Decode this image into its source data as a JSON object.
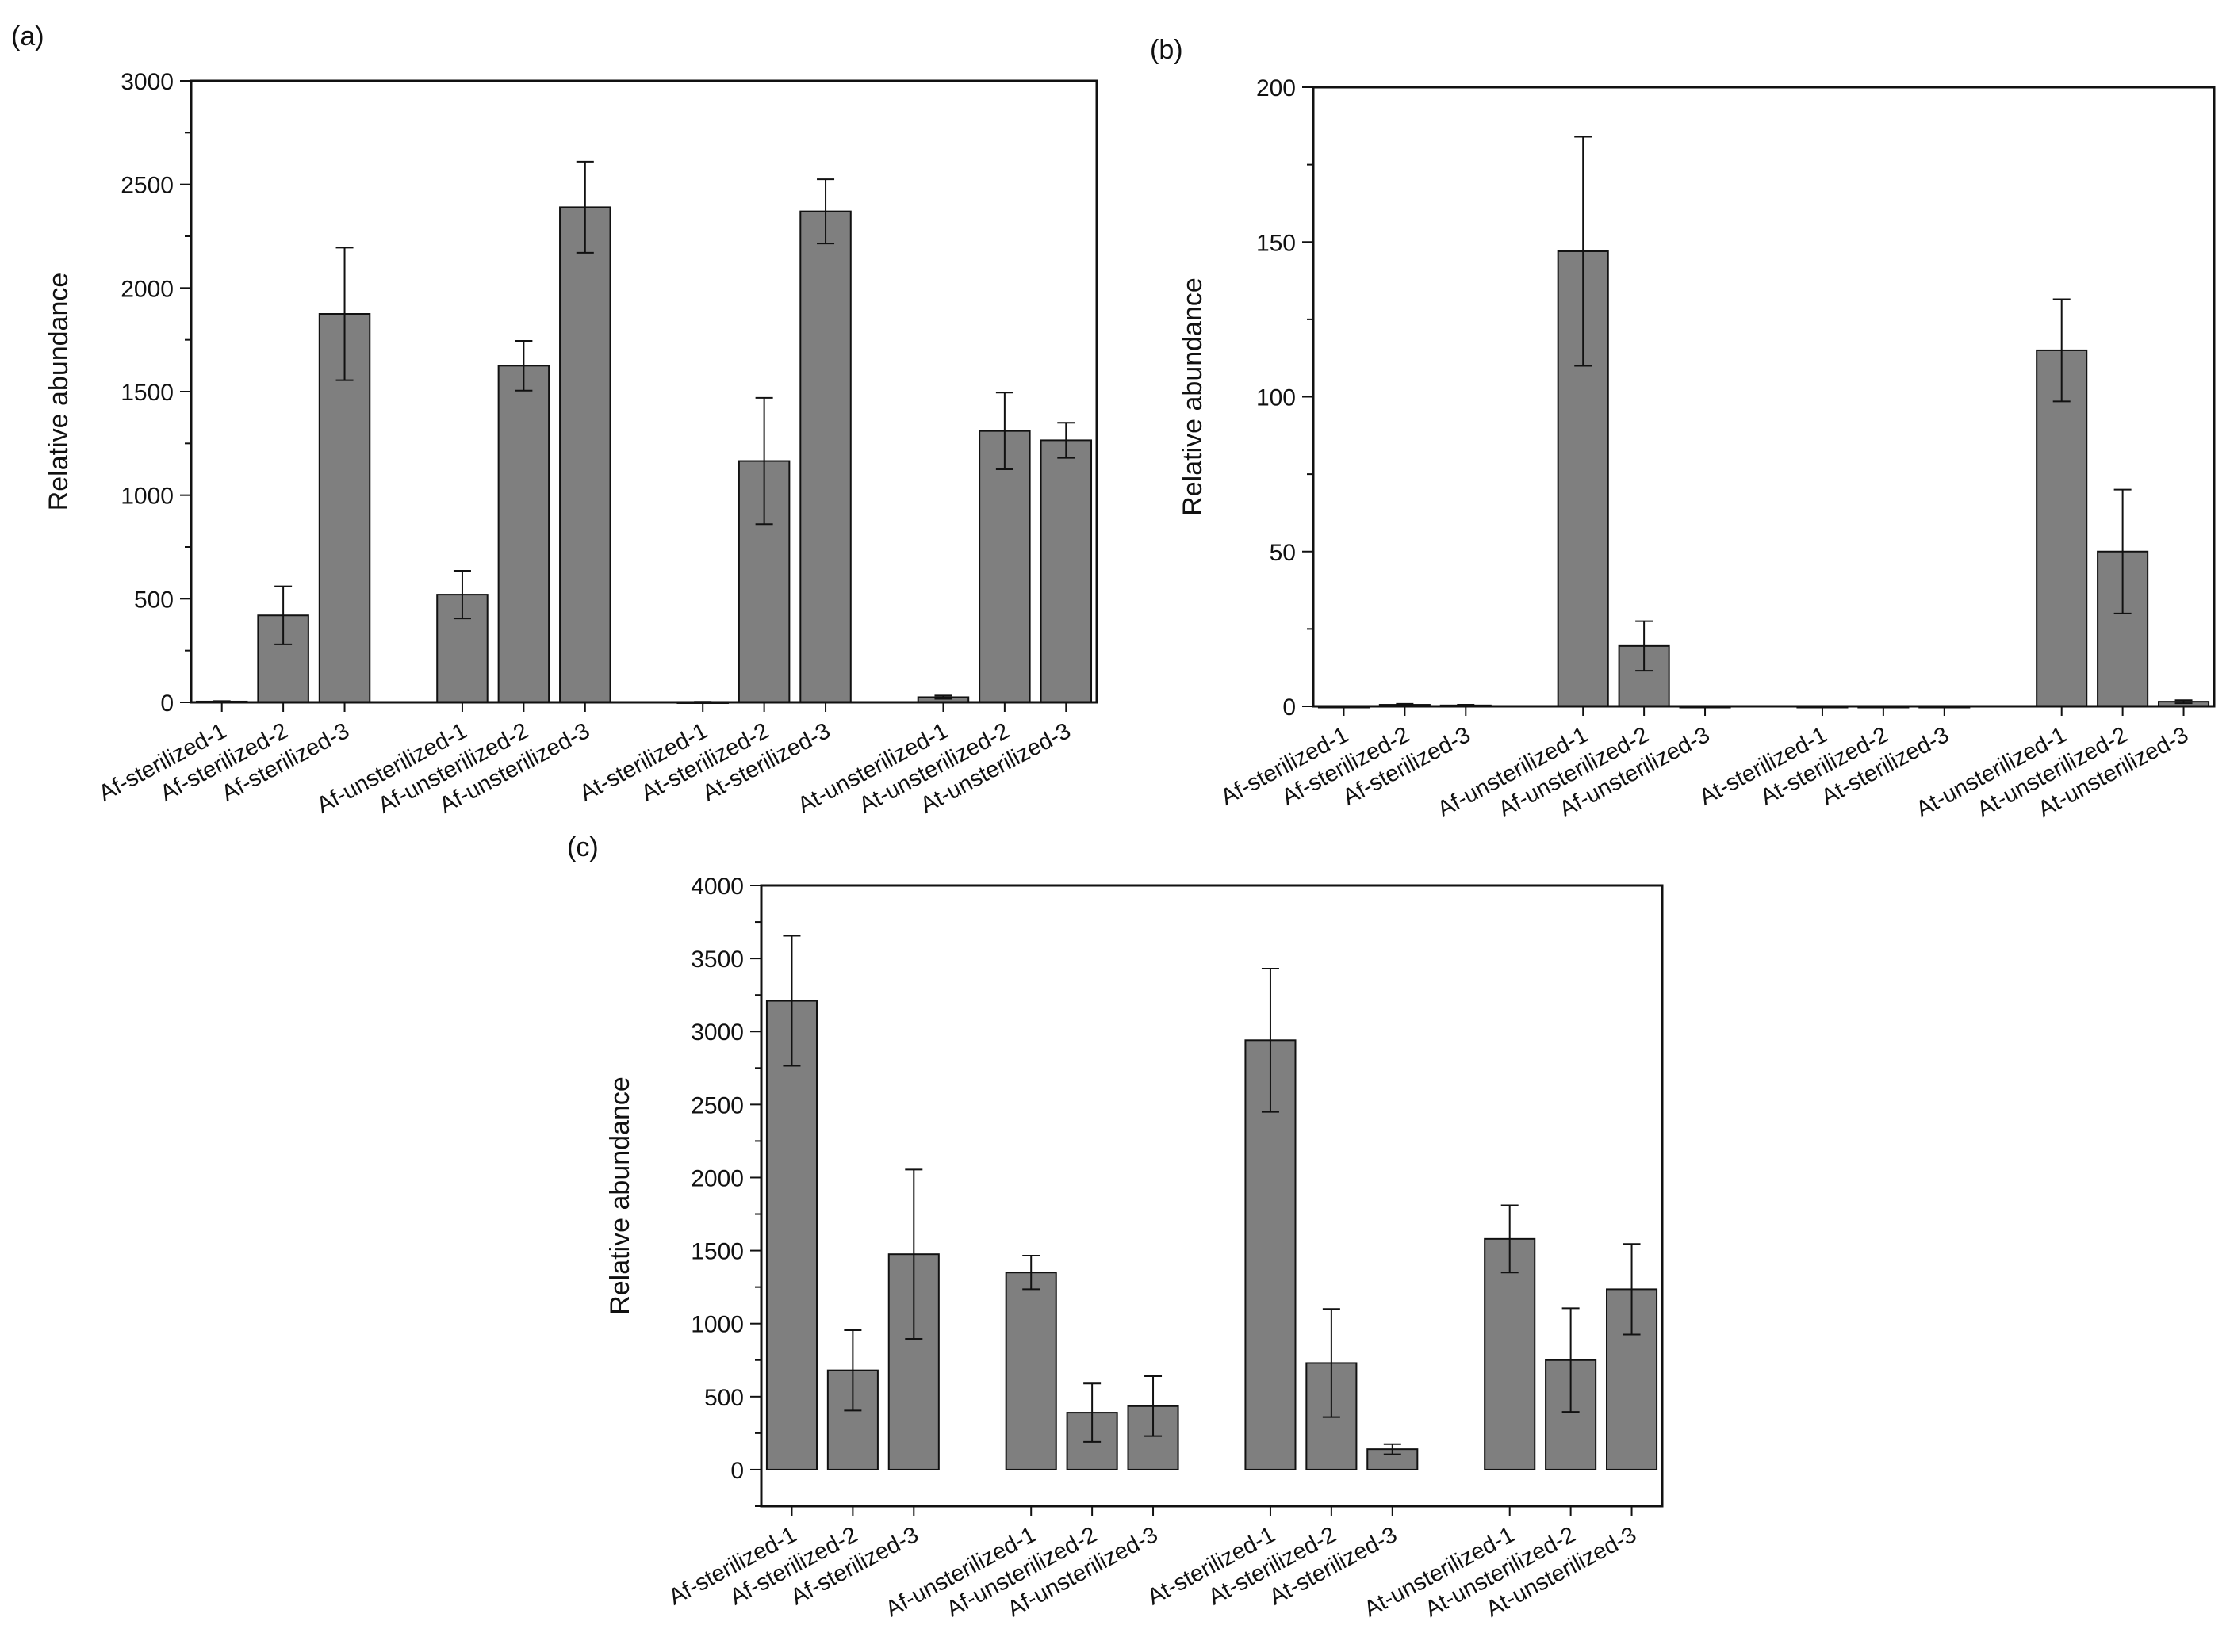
{
  "colors": {
    "bar": "#7f7f7f",
    "stroke": "#111111",
    "background": "#ffffff"
  },
  "chart_data": [
    {
      "panel": "(a)",
      "type": "bar",
      "title": "",
      "xlabel": "",
      "ylabel": "Relative abundance",
      "ylim": [
        0,
        3000
      ],
      "yticks": [
        0,
        500,
        1000,
        1500,
        2000,
        2500,
        3000
      ],
      "yminor_step": 250,
      "groups": 4,
      "categories": [
        "Af-sterilized-1",
        "Af-sterilized-2",
        "Af-sterilized-3",
        "Af-unsterilized-1",
        "Af-unsterilized-2",
        "Af-unsterilized-3",
        "At-sterilized-1",
        "At-sterilized-2",
        "At-sterilized-3",
        "At-unsterilized-1",
        "At-unsterilized-2",
        "At-unsterilized-3"
      ],
      "values": [
        4,
        420,
        1875,
        520,
        1625,
        2390,
        2,
        1165,
        2370,
        25,
        1310,
        1265
      ],
      "errors": [
        2,
        140,
        320,
        115,
        120,
        220,
        1,
        305,
        155,
        8,
        185,
        85
      ]
    },
    {
      "panel": "(b)",
      "type": "bar",
      "title": "",
      "xlabel": "",
      "ylabel": "Relative abundance",
      "ylim": [
        0,
        200
      ],
      "yticks": [
        0,
        50,
        100,
        150,
        200
      ],
      "yminor_step": 25,
      "groups": 4,
      "categories": [
        "Af-sterilized-1",
        "Af-sterilized-2",
        "Af-sterilized-3",
        "Af-unsterilized-1",
        "Af-unsterilized-2",
        "Af-unsterilized-3",
        "At-sterilized-1",
        "At-sterilized-2",
        "At-sterilized-3",
        "At-unsterilized-1",
        "At-unsterilized-2",
        "At-unsterilized-3"
      ],
      "values": [
        0,
        0.5,
        0.3,
        147,
        19.5,
        0,
        0,
        0,
        0,
        115,
        50,
        1.5
      ],
      "errors": [
        0,
        0.3,
        0.2,
        37,
        8,
        0,
        0,
        0,
        0,
        16.5,
        20,
        0.5
      ]
    },
    {
      "panel": "(c)",
      "type": "bar",
      "title": "",
      "xlabel": "",
      "ylabel": "Relative abundance",
      "ylim": [
        -250,
        4000
      ],
      "yticks": [
        0,
        500,
        1000,
        1500,
        2000,
        2500,
        3000,
        3500,
        4000
      ],
      "yminor_step": 250,
      "groups": 4,
      "categories": [
        "Af-sterilized-1",
        "Af-sterilized-2",
        "Af-sterilized-3",
        "Af-unsterilized-1",
        "Af-unsterilized-2",
        "Af-unsterilized-3",
        "At-sterilized-1",
        "At-sterilized-2",
        "At-sterilized-3",
        "At-unsterilized-1",
        "At-unsterilized-2",
        "At-unsterilized-3"
      ],
      "values": [
        3210,
        680,
        1475,
        1350,
        390,
        435,
        2940,
        730,
        140,
        1580,
        750,
        1235
      ],
      "errors": [
        445,
        275,
        580,
        115,
        200,
        205,
        490,
        370,
        35,
        230,
        355,
        310
      ]
    }
  ]
}
